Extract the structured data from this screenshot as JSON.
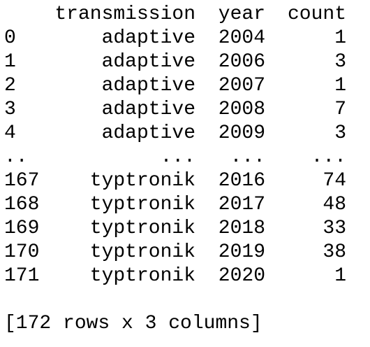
{
  "table": {
    "header": [
      "",
      "transmission",
      "year",
      "count"
    ],
    "rows": [
      [
        "0",
        "adaptive",
        "2004",
        "1"
      ],
      [
        "1",
        "adaptive",
        "2006",
        "3"
      ],
      [
        "2",
        "adaptive",
        "2007",
        "1"
      ],
      [
        "3",
        "adaptive",
        "2008",
        "7"
      ],
      [
        "4",
        "adaptive",
        "2009",
        "3"
      ],
      [
        "..",
        "...",
        "...",
        "..."
      ],
      [
        "167",
        "typtronik",
        "2016",
        "74"
      ],
      [
        "168",
        "typtronik",
        "2017",
        "48"
      ],
      [
        "169",
        "typtronik",
        "2018",
        "33"
      ],
      [
        "170",
        "typtronik",
        "2019",
        "38"
      ],
      [
        "171",
        "typtronik",
        "2020",
        "1"
      ]
    ]
  },
  "summary": "[172 rows x 3 columns]"
}
